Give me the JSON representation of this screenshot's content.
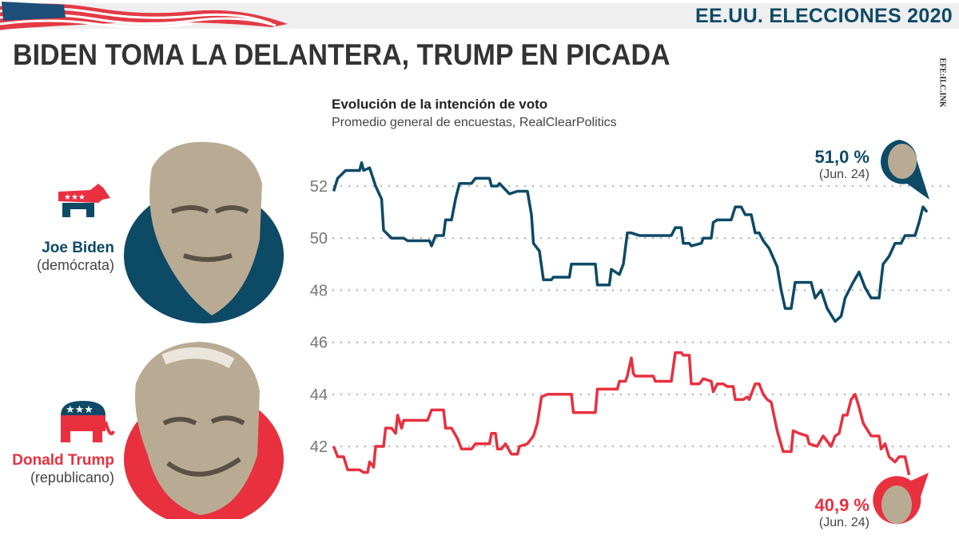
{
  "header": {
    "kicker": "EE.UU. ELECCIONES 2020",
    "title": "BIDEN TOMA LA DELANTERA, TRUMP EN PICADA",
    "logo": "EFE:ILC.INK"
  },
  "candidates": [
    {
      "name": "Joe Biden",
      "party": "(demócrata)",
      "color": "#0d4a66",
      "icon": "donkey-icon"
    },
    {
      "name": "Donald Trump",
      "party": "(republicano)",
      "color": "#e8303f",
      "icon": "elephant-icon"
    }
  ],
  "callouts": {
    "biden": {
      "value": "51,0 %",
      "date": "(Jun. 24)"
    },
    "trump": {
      "value": "40,9 %",
      "date": "(Jun. 24)"
    }
  },
  "chart_data": {
    "type": "line",
    "title": "Evolución de la intención de voto",
    "subtitle": "Promedio general de encuestas, RealClearPolitics",
    "xlabel": "",
    "ylabel": "",
    "ylim": [
      40.5,
      53.2
    ],
    "yticks": [
      42,
      44,
      46,
      48,
      50,
      52
    ],
    "grid": true,
    "series": [
      {
        "name": "Joe Biden",
        "color": "#0d4a66",
        "points": [
          [
            1,
            51.8
          ],
          [
            3,
            52.3
          ],
          [
            7,
            52.6
          ],
          [
            14,
            52.6
          ],
          [
            15,
            52.9
          ],
          [
            16,
            52.6
          ],
          [
            19,
            52.7
          ],
          [
            22,
            52.0
          ],
          [
            25,
            51.5
          ],
          [
            26,
            50.3
          ],
          [
            30,
            50.0
          ],
          [
            36,
            50.0
          ],
          [
            38,
            49.9
          ],
          [
            49,
            49.9
          ],
          [
            50,
            49.7
          ],
          [
            52,
            50.1
          ],
          [
            56,
            50.1
          ],
          [
            57,
            50.7
          ],
          [
            60,
            50.7
          ],
          [
            62,
            51.5
          ],
          [
            64,
            52.1
          ],
          [
            70,
            52.1
          ],
          [
            72,
            52.3
          ],
          [
            79,
            52.3
          ],
          [
            80,
            52.0
          ],
          [
            83,
            52.0
          ],
          [
            84,
            52.1
          ],
          [
            89,
            51.7
          ],
          [
            93,
            51.8
          ],
          [
            98,
            51.8
          ],
          [
            100,
            50.9
          ],
          [
            101,
            49.8
          ],
          [
            104,
            49.5
          ],
          [
            106,
            48.4
          ],
          [
            110,
            48.4
          ],
          [
            111,
            48.5
          ],
          [
            119,
            48.5
          ],
          [
            120,
            49.0
          ],
          [
            132,
            49.0
          ],
          [
            133,
            48.2
          ],
          [
            139,
            48.2
          ],
          [
            140,
            48.8
          ],
          [
            144,
            48.6
          ],
          [
            146,
            49.0
          ],
          [
            148,
            50.2
          ],
          [
            150,
            50.2
          ],
          [
            154,
            50.1
          ],
          [
            170,
            50.1
          ],
          [
            172,
            50.4
          ],
          [
            175,
            50.4
          ],
          [
            176,
            49.8
          ],
          [
            179,
            49.8
          ],
          [
            180,
            49.7
          ],
          [
            185,
            49.8
          ],
          [
            186,
            50.0
          ],
          [
            190,
            50.0
          ],
          [
            191,
            50.6
          ],
          [
            193,
            50.7
          ],
          [
            200,
            50.7
          ],
          [
            202,
            51.2
          ],
          [
            205,
            51.2
          ],
          [
            207,
            50.9
          ],
          [
            210,
            50.9
          ],
          [
            212,
            50.2
          ],
          [
            214,
            50.2
          ],
          [
            216,
            49.9
          ],
          [
            219,
            49.6
          ],
          [
            223,
            48.9
          ],
          [
            225,
            48.0
          ],
          [
            227,
            47.3
          ],
          [
            230,
            47.3
          ],
          [
            232,
            48.3
          ],
          [
            240,
            48.3
          ],
          [
            242,
            47.7
          ],
          [
            245,
            48.0
          ],
          [
            248,
            47.3
          ],
          [
            252,
            46.8
          ],
          [
            255,
            47.0
          ],
          [
            257,
            47.7
          ],
          [
            261,
            48.3
          ],
          [
            264,
            48.7
          ],
          [
            267,
            48.1
          ],
          [
            270,
            47.7
          ],
          [
            274,
            47.7
          ],
          [
            276,
            49.0
          ],
          [
            279,
            49.3
          ],
          [
            282,
            49.8
          ],
          [
            285,
            49.8
          ],
          [
            287,
            50.1
          ],
          [
            292,
            50.1
          ],
          [
            294,
            50.6
          ],
          [
            296,
            51.2
          ],
          [
            298,
            51.0
          ]
        ]
      },
      {
        "name": "Donald Trump",
        "color": "#e8303f",
        "points": [
          [
            1,
            42.0
          ],
          [
            3,
            41.6
          ],
          [
            6,
            41.6
          ],
          [
            8,
            41.1
          ],
          [
            14,
            41.1
          ],
          [
            16,
            41.0
          ],
          [
            18,
            41.0
          ],
          [
            19,
            41.4
          ],
          [
            21,
            41.2
          ],
          [
            22,
            42.0
          ],
          [
            26,
            42.0
          ],
          [
            27,
            42.7
          ],
          [
            30,
            42.7
          ],
          [
            32,
            42.5
          ],
          [
            33,
            43.2
          ],
          [
            35,
            42.7
          ],
          [
            36,
            43.0
          ],
          [
            48,
            43.0
          ],
          [
            50,
            43.4
          ],
          [
            56,
            43.4
          ],
          [
            57,
            42.7
          ],
          [
            60,
            42.7
          ],
          [
            63,
            42.3
          ],
          [
            65,
            41.9
          ],
          [
            70,
            41.9
          ],
          [
            72,
            42.1
          ],
          [
            79,
            42.1
          ],
          [
            80,
            42.5
          ],
          [
            82,
            42.5
          ],
          [
            83,
            41.9
          ],
          [
            85,
            41.9
          ],
          [
            87,
            42.1
          ],
          [
            90,
            41.7
          ],
          [
            93,
            41.7
          ],
          [
            94,
            42.0
          ],
          [
            98,
            42.1
          ],
          [
            101,
            42.4
          ],
          [
            103,
            42.9
          ],
          [
            105,
            43.9
          ],
          [
            108,
            44.0
          ],
          [
            120,
            44.0
          ],
          [
            121,
            43.3
          ],
          [
            132,
            43.3
          ],
          [
            133,
            44.2
          ],
          [
            143,
            44.2
          ],
          [
            144,
            44.5
          ],
          [
            147,
            44.5
          ],
          [
            148,
            44.7
          ],
          [
            150,
            45.4
          ],
          [
            151,
            44.8
          ],
          [
            152,
            44.7
          ],
          [
            161,
            44.7
          ],
          [
            162,
            44.5
          ],
          [
            170,
            44.5
          ],
          [
            172,
            45.6
          ],
          [
            175,
            45.6
          ],
          [
            176,
            45.5
          ],
          [
            179,
            45.5
          ],
          [
            180,
            44.4
          ],
          [
            184,
            44.4
          ],
          [
            186,
            44.6
          ],
          [
            190,
            44.5
          ],
          [
            191,
            44.1
          ],
          [
            193,
            44.4
          ],
          [
            196,
            44.4
          ],
          [
            198,
            44.3
          ],
          [
            201,
            44.3
          ],
          [
            202,
            43.8
          ],
          [
            206,
            43.8
          ],
          [
            208,
            43.9
          ],
          [
            209,
            43.8
          ],
          [
            212,
            44.4
          ],
          [
            214,
            44.4
          ],
          [
            216,
            44.0
          ],
          [
            218,
            43.8
          ],
          [
            220,
            43.7
          ],
          [
            223,
            42.6
          ],
          [
            226,
            41.8
          ],
          [
            230,
            41.8
          ],
          [
            231,
            42.6
          ],
          [
            234,
            42.5
          ],
          [
            238,
            42.4
          ],
          [
            239,
            42.1
          ],
          [
            243,
            42.0
          ],
          [
            246,
            42.4
          ],
          [
            250,
            42.0
          ],
          [
            252,
            42.4
          ],
          [
            254,
            42.5
          ],
          [
            256,
            43.2
          ],
          [
            258,
            43.2
          ],
          [
            260,
            43.8
          ],
          [
            262,
            44.0
          ],
          [
            264,
            43.5
          ],
          [
            266,
            42.9
          ],
          [
            270,
            42.4
          ],
          [
            274,
            42.4
          ],
          [
            275,
            41.9
          ],
          [
            277,
            42.1
          ],
          [
            279,
            41.6
          ],
          [
            282,
            41.4
          ],
          [
            284,
            41.6
          ],
          [
            287,
            41.6
          ],
          [
            289,
            40.9
          ]
        ]
      }
    ]
  }
}
